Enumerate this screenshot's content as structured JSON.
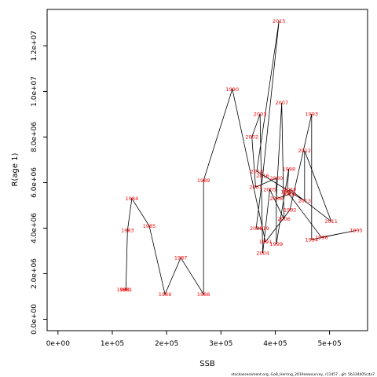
{
  "chart_data": {
    "type": "line",
    "title": "",
    "xlabel": "SSB",
    "ylabel": "R(age 1)",
    "xlim": [
      -20000,
      570000
    ],
    "ylim": [
      -500000,
      13600000
    ],
    "grid": false,
    "legend": "none",
    "colors": {
      "line": "#000000",
      "labels": "#ff0000",
      "frame": "#000000"
    },
    "x_ticks": [
      {
        "v": 0,
        "label": "0e+00"
      },
      {
        "v": 100000,
        "label": "1e+05"
      },
      {
        "v": 200000,
        "label": "2e+05"
      },
      {
        "v": 300000,
        "label": "3e+05"
      },
      {
        "v": 400000,
        "label": "4e+05"
      },
      {
        "v": 500000,
        "label": "5e+05"
      }
    ],
    "y_ticks": [
      {
        "v": 0,
        "label": "0.0e+00"
      },
      {
        "v": 2000000,
        "label": "2.0e+06"
      },
      {
        "v": 4000000,
        "label": "4.0e+06"
      },
      {
        "v": 6000000,
        "label": "6.0e+06"
      },
      {
        "v": 8000000,
        "label": "8.0e+06"
      },
      {
        "v": 10000000,
        "label": "1.0e+07"
      },
      {
        "v": 12000000,
        "label": "1.2e+07"
      }
    ],
    "points": [
      {
        "year": "1980",
        "ssb": 120000,
        "rec": 1300000
      },
      {
        "year": "1981",
        "ssb": 125000,
        "rec": 1300000
      },
      {
        "year": "1983",
        "ssb": 128000,
        "rec": 3900000
      },
      {
        "year": "1984",
        "ssb": 136000,
        "rec": 5300000
      },
      {
        "year": "1985",
        "ssb": 168000,
        "rec": 4100000
      },
      {
        "year": "1986",
        "ssb": 197000,
        "rec": 1100000
      },
      {
        "year": "1987",
        "ssb": 226000,
        "rec": 2700000
      },
      {
        "year": "1988",
        "ssb": 268000,
        "rec": 1100000
      },
      {
        "year": "1989",
        "ssb": 268000,
        "rec": 6100000
      },
      {
        "year": "1990",
        "ssb": 321000,
        "rec": 10100000
      },
      {
        "year": "1991",
        "ssb": 382000,
        "rec": 3400000
      },
      {
        "year": "1992",
        "ssb": 427000,
        "rec": 4800000
      },
      {
        "year": "1993",
        "ssb": 467000,
        "rec": 9000000
      },
      {
        "year": "1994",
        "ssb": 467000,
        "rec": 3500000
      },
      {
        "year": "1995",
        "ssb": 549000,
        "rec": 3900000
      },
      {
        "year": "1996",
        "ssb": 485000,
        "rec": 3600000
      },
      {
        "year": "1997",
        "ssb": 422000,
        "rec": 5600000
      },
      {
        "year": "1998",
        "ssb": 425000,
        "rec": 6600000
      },
      {
        "year": "1999",
        "ssb": 402000,
        "rec": 3300000
      },
      {
        "year": "2000",
        "ssb": 402000,
        "rec": 6200000
      },
      {
        "year": "2001",
        "ssb": 364000,
        "rec": 5800000
      },
      {
        "year": "2002",
        "ssb": 357000,
        "rec": 8000000
      },
      {
        "year": "2003",
        "ssb": 372000,
        "rec": 9000000
      },
      {
        "year": "2004",
        "ssb": 377000,
        "rec": 2900000
      },
      {
        "year": "2005",
        "ssb": 390000,
        "rec": 5700000
      },
      {
        "year": "2006",
        "ssb": 416000,
        "rec": 4400000
      },
      {
        "year": "2007",
        "ssb": 412000,
        "rec": 9500000
      },
      {
        "year": "2008",
        "ssb": 402000,
        "rec": 5300000
      },
      {
        "year": "2009",
        "ssb": 427000,
        "rec": 5500000
      },
      {
        "year": "2010",
        "ssb": 427000,
        "rec": 5700000
      },
      {
        "year": "2011",
        "ssb": 503000,
        "rec": 4300000
      },
      {
        "year": "2012",
        "ssb": 454000,
        "rec": 7400000
      },
      {
        "year": "2013",
        "ssb": 454000,
        "rec": 5200000
      },
      {
        "year": "2014",
        "ssb": 366000,
        "rec": 6500000
      },
      {
        "year": "2015",
        "ssb": 407000,
        "rec": 13100000
      },
      {
        "year": "2016",
        "ssb": 377000,
        "rec": 6300000
      },
      {
        "year": "2018",
        "ssb": 365000,
        "rec": 4000000
      },
      {
        "year": "2019",
        "ssb": 377000,
        "rec": 4000000
      }
    ]
  },
  "footer": {
    "text": "stockassessment.org, GoB_Herring_2019newsurvey, r11457 ,  git: 5b334405cda7"
  }
}
